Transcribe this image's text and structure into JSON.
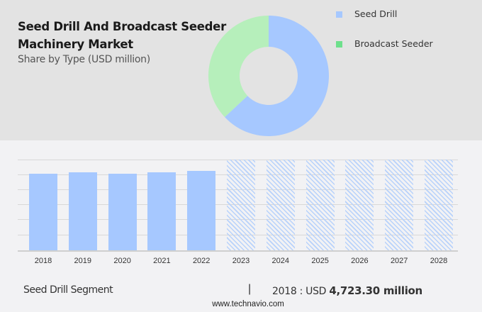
{
  "header": {
    "title_line1": "Seed Drill And Broadcast Seeder",
    "title_line2": "Machinery Market",
    "subtitle": "Share by Type (USD million)"
  },
  "legend": [
    {
      "label": "Seed Drill",
      "color": "#a6c8ff"
    },
    {
      "label": "Broadcast Seeder",
      "color": "#6ee08c"
    }
  ],
  "footer": {
    "segment": "Seed Drill Segment",
    "separator": "|",
    "value_prefix": "2018 : USD ",
    "value_bold": "4,723.30 million",
    "url": "www.technavio.com"
  },
  "chart_data": [
    {
      "type": "pie",
      "title": "Share by Type (USD million)",
      "variant": "donut",
      "categories": [
        "Seed Drill",
        "Broadcast Seeder"
      ],
      "values": [
        63,
        37
      ],
      "unit": "percent (approx.)",
      "colors": [
        "#a6c8ff",
        "#b6efbb"
      ],
      "legend_position": "right"
    },
    {
      "type": "bar",
      "title": "Seed Drill Segment",
      "categories": [
        "2018",
        "2019",
        "2020",
        "2021",
        "2022",
        "2023",
        "2024",
        "2025",
        "2026",
        "2027",
        "2028"
      ],
      "values": [
        4723.3,
        4820,
        4730,
        4820,
        4910,
        null,
        null,
        null,
        null,
        null,
        null
      ],
      "forecast_years": [
        "2023",
        "2024",
        "2025",
        "2026",
        "2027",
        "2028"
      ],
      "ylabel": "USD million",
      "xlabel": "",
      "y_axis_labels_visible": false,
      "grid": true,
      "annotation": "2018 : USD 4,723.30 million",
      "colors": {
        "actual": "#a6c8ff",
        "forecast_hatch": "#b8d2fb"
      }
    }
  ]
}
